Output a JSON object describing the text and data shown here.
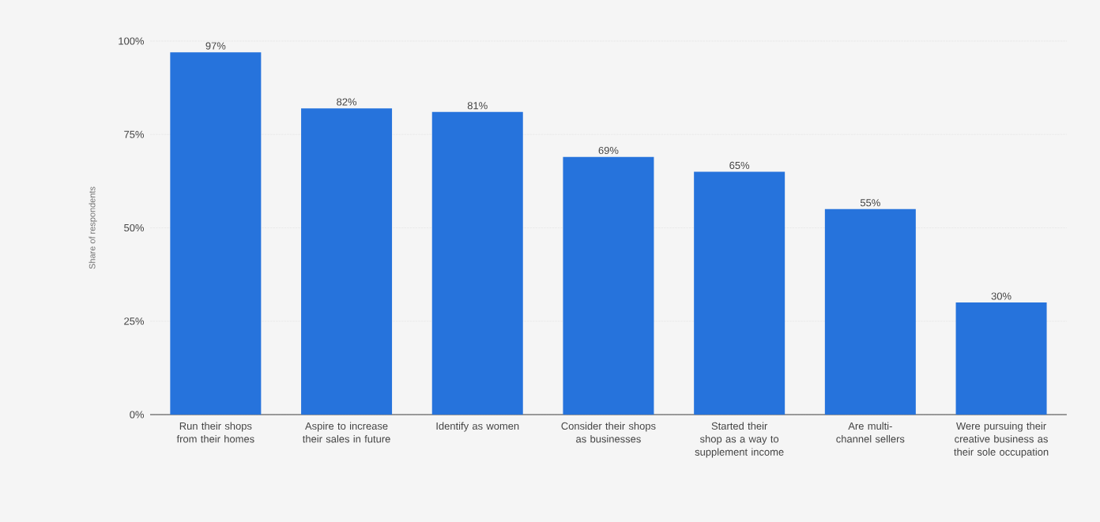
{
  "chart_data": {
    "type": "bar",
    "ylabel": "Share of respondents",
    "categories": [
      "Run their shops from their homes",
      "Aspire to increase their sales in future",
      "Identify as women",
      "Consider their shops as businesses",
      "Started their shop as a way to supplement income",
      "Are multi-channel sellers",
      "Were pursuing their creative business as their sole occupation"
    ],
    "values": [
      97,
      82,
      81,
      69,
      65,
      55,
      30
    ],
    "value_labels": [
      "97%",
      "82%",
      "81%",
      "69%",
      "65%",
      "55%",
      "30%"
    ],
    "color": "#2673dc",
    "ylim": [
      0,
      100
    ],
    "yticks": [
      {
        "value": 0,
        "label": "0%"
      },
      {
        "value": 25,
        "label": "25%"
      },
      {
        "value": 50,
        "label": "50%"
      },
      {
        "value": 75,
        "label": "75%"
      },
      {
        "value": 100,
        "label": "100%"
      }
    ],
    "grid": "y"
  }
}
